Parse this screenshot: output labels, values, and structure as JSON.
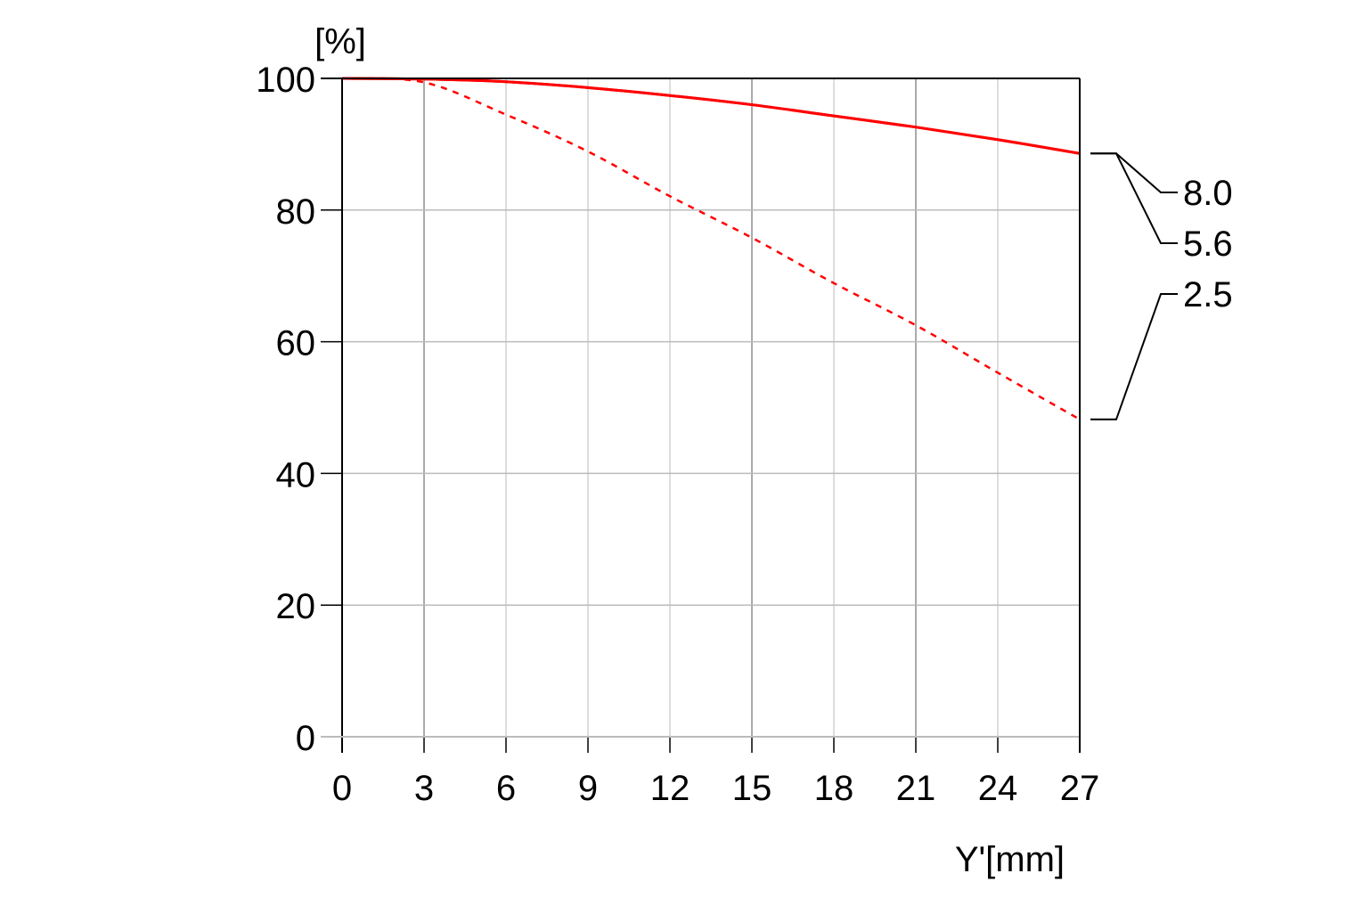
{
  "chart_data": {
    "type": "line",
    "title": "",
    "xlabel": "Y'[mm]",
    "ylabel": "[%]",
    "xlim": [
      0,
      27
    ],
    "ylim": [
      0,
      100
    ],
    "x_ticks": [
      "0",
      "3",
      "6",
      "9",
      "12",
      "15",
      "18",
      "21",
      "24",
      "27"
    ],
    "y_ticks": [
      "0",
      "20",
      "40",
      "60",
      "80",
      "100"
    ],
    "grid": true,
    "legend_placement": "right",
    "x": [
      0,
      3,
      6,
      9,
      12,
      15,
      18,
      21,
      24,
      27
    ],
    "series": [
      {
        "name": "8.0",
        "style": "solid",
        "color": "#ff0000",
        "values": [
          100,
          99.9,
          99.5,
          98.6,
          97.4,
          96.0,
          94.3,
          92.6,
          90.7,
          88.6
        ]
      },
      {
        "name": "5.6",
        "style": "solid",
        "color": "#ff0000",
        "values": [
          100,
          99.9,
          99.5,
          98.6,
          97.4,
          96.0,
          94.3,
          92.6,
          90.7,
          88.6
        ]
      },
      {
        "name": "2.5",
        "style": "dashed",
        "color": "#ff0000",
        "values": [
          100,
          99.4,
          94.5,
          88.9,
          82.1,
          75.8,
          68.9,
          62.5,
          55.3,
          48.2
        ]
      }
    ]
  }
}
